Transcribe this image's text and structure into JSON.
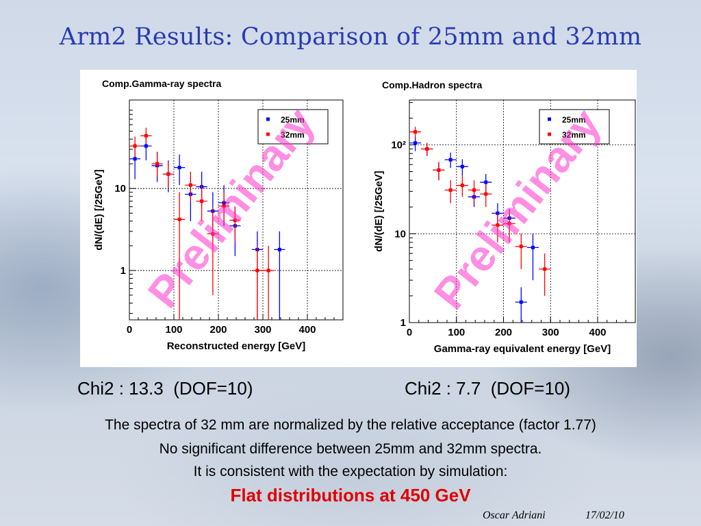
{
  "slide": {
    "title": "Arm2 Results: Comparison of 25mm and 32mm",
    "chi_left": "Chi2 : 13.3  (DOF=10)",
    "chi_right": "Chi2 : 7.7  (DOF=10)",
    "text_lines": [
      "The spectra of 32 mm are normalized by the relative acceptance (factor 1.77)",
      "No significant difference between 25mm and 32mm spectra.",
      "It is consistent with the expectation by simulation:"
    ],
    "highlight": "Flat distributions at 450 GeV",
    "footer_author": "Oscar Adriani",
    "footer_date": "17/02/10",
    "watermark": "Preliminary"
  },
  "colors": {
    "title": "#2a3bb0",
    "series_25mm": "#0000ff",
    "series_32mm": "#ff0000",
    "highlight": "#e00000"
  },
  "chart_data": [
    {
      "type": "scatter",
      "title": "Comp.Gamma-ray spectra",
      "xlabel": "Reconstructed energy [GeV]",
      "ylabel": "dN/(dE) [/25GeV]",
      "xlim": [
        0,
        480
      ],
      "ylim": [
        0.25,
        120
      ],
      "yscale": "log",
      "xticks": [
        0,
        100,
        200,
        300,
        400
      ],
      "yticks": [
        1,
        10
      ],
      "ytick_labels": [
        "1",
        "10"
      ],
      "grid": true,
      "legend_position": "top-right",
      "series": [
        {
          "name": "25mm",
          "color": "#0000ff",
          "x": [
            12.5,
            37.5,
            62.5,
            87.5,
            112.5,
            137.5,
            162.5,
            187.5,
            212.5,
            237.5,
            287.5,
            337.5
          ],
          "y": [
            23,
            33,
            19,
            15,
            18,
            8.5,
            10.5,
            5.3,
            6.7,
            3.5,
            1.8,
            1.8
          ],
          "ylow": [
            13,
            22,
            12,
            9,
            11,
            4,
            6,
            2.5,
            3.5,
            1.5,
            0.25,
            0.25
          ],
          "yhigh": [
            36,
            45,
            28,
            22,
            26,
            14,
            16,
            9,
            11,
            6,
            3,
            3
          ]
        },
        {
          "name": "32mm",
          "color": "#ff0000",
          "x": [
            12.5,
            37.5,
            62.5,
            87.5,
            112.5,
            137.5,
            162.5,
            187.5,
            212.5,
            237.5,
            287.5,
            312.5
          ],
          "y": [
            33,
            44,
            20,
            15,
            4.2,
            11,
            7,
            2.8,
            6.1,
            4.1,
            1.0,
            1.0
          ],
          "ylow": [
            25,
            35,
            14,
            10,
            0.25,
            7,
            4,
            0.5,
            4,
            2.2,
            0.25,
            0.25
          ],
          "yhigh": [
            43,
            55,
            27,
            21,
            9,
            16,
            11,
            6,
            9,
            6,
            2,
            2
          ]
        }
      ]
    },
    {
      "type": "scatter",
      "title": "Comp.Hadron spectra",
      "xlabel": "Gamma-ray equivalent energy [GeV]",
      "ylabel": "dN/(dE) [/25GeV]",
      "xlim": [
        0,
        480
      ],
      "ylim": [
        1,
        320
      ],
      "yscale": "log",
      "xticks": [
        0,
        100,
        200,
        300,
        400
      ],
      "yticks": [
        1,
        10,
        100
      ],
      "ytick_labels": [
        "1",
        "10",
        "10²"
      ],
      "grid": true,
      "legend_position": "top-right",
      "series": [
        {
          "name": "25mm",
          "color": "#0000ff",
          "x": [
            12.5,
            37.5,
            62.5,
            87.5,
            112.5,
            137.5,
            162.5,
            187.5,
            212.5,
            237.5,
            262.5
          ],
          "y": [
            105,
            90,
            52,
            68,
            57,
            26,
            38,
            17,
            15,
            1.7,
            7
          ],
          "ylow": [
            85,
            75,
            40,
            55,
            45,
            20,
            29,
            12,
            11,
            1,
            3
          ],
          "yhigh": [
            125,
            105,
            64,
            82,
            69,
            33,
            47,
            22,
            19,
            2.5,
            10
          ]
        },
        {
          "name": "32mm",
          "color": "#ff0000",
          "x": [
            12.5,
            37.5,
            62.5,
            87.5,
            112.5,
            137.5,
            162.5,
            187.5,
            212.5,
            237.5,
            287.5
          ],
          "y": [
            140,
            90,
            52,
            31,
            35,
            31,
            28,
            12.5,
            13,
            7.2,
            4.0
          ],
          "ylow": [
            120,
            75,
            40,
            22,
            26,
            22,
            20,
            8,
            8,
            4,
            2
          ],
          "yhigh": [
            160,
            105,
            64,
            40,
            45,
            40,
            36,
            17,
            18,
            10,
            6
          ]
        }
      ]
    }
  ]
}
